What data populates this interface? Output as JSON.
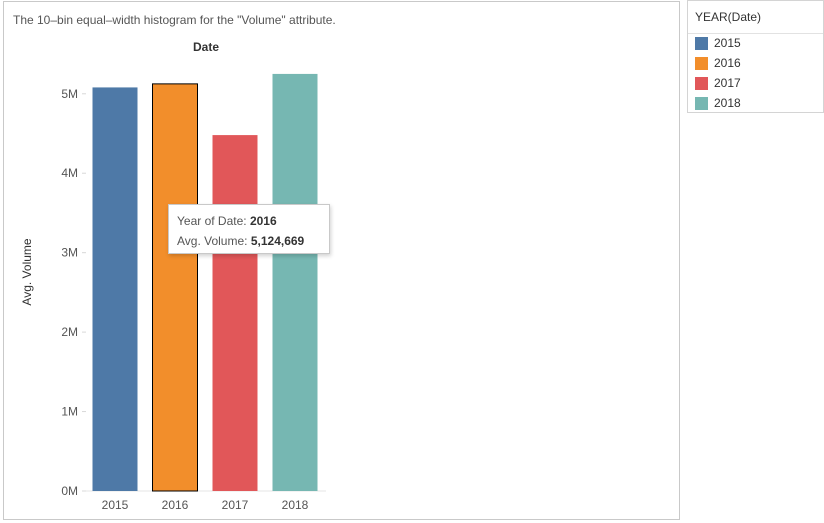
{
  "title": "The 10–bin equal–width histogram for the \"Volume\" attribute.",
  "chart_data": {
    "type": "bar",
    "column_header": "Date",
    "ylabel": "Avg. Volume",
    "categories": [
      "2015",
      "2016",
      "2017",
      "2018"
    ],
    "values": [
      5080000,
      5124669,
      4480000,
      5250000
    ],
    "colors": [
      "#4e79a7",
      "#f28e2b",
      "#e15759",
      "#76b7b2"
    ],
    "ylim": [
      0,
      5400000
    ],
    "yticks": [
      {
        "value": 0,
        "label": "0M"
      },
      {
        "value": 1000000,
        "label": "1M"
      },
      {
        "value": 2000000,
        "label": "2M"
      },
      {
        "value": 3000000,
        "label": "3M"
      },
      {
        "value": 4000000,
        "label": "4M"
      },
      {
        "value": 5000000,
        "label": "5M"
      }
    ],
    "highlighted": "2016",
    "grid": false
  },
  "legend": {
    "title": "YEAR(Date)",
    "items": [
      {
        "label": "2015",
        "color": "#4e79a7"
      },
      {
        "label": "2016",
        "color": "#f28e2b"
      },
      {
        "label": "2017",
        "color": "#e15759"
      },
      {
        "label": "2018",
        "color": "#76b7b2"
      }
    ]
  },
  "tooltip": {
    "year_label": "Year of Date:",
    "year_value": "2016",
    "volume_label": "Avg. Volume:",
    "volume_value": "5,124,669"
  }
}
